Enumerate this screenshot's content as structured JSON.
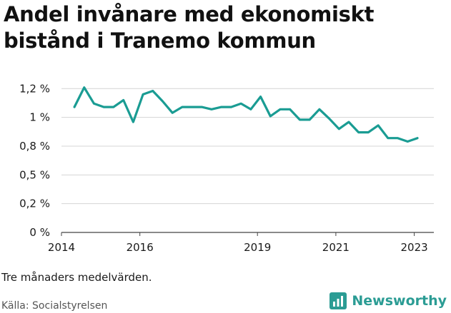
{
  "note": "Tre månaders medelvärden.",
  "source": "Källa: Socialstyrelsen",
  "brand": {
    "name": "Newsworthy",
    "logo_icon": "bar-chart-icon",
    "color": "#2b9c94"
  },
  "chart_data": {
    "type": "line",
    "title": "Andel invånare med ekonomiskt bistånd i Tranemo kommun",
    "xlabel": "",
    "ylabel": "",
    "ylim": [
      0,
      1.32
    ],
    "xlim": [
      2014,
      2023.5
    ],
    "y_ticks": [
      0,
      0.25,
      0.5,
      0.75,
      1.0,
      1.25
    ],
    "y_tick_labels": [
      "0 %",
      "0,2 %",
      "0,5 %",
      "0,8 %",
      "1 %",
      "1,2 %"
    ],
    "x_ticks": [
      2014,
      2016,
      2019,
      2021,
      2023
    ],
    "x_tick_labels": [
      "2014",
      "2016",
      "2019",
      "2021",
      "2023"
    ],
    "grid": true,
    "series_color": "#1a9c93",
    "series": [
      {
        "x": [
          2014.33,
          2014.58,
          2014.83,
          2015.08,
          2015.33,
          2015.58,
          2015.83,
          2016.08,
          2016.33,
          2016.58,
          2016.83,
          2017.08,
          2017.33,
          2017.58,
          2017.83,
          2018.08,
          2018.33,
          2018.58,
          2018.83,
          2019.08,
          2019.33,
          2019.58,
          2019.83,
          2020.08,
          2020.33,
          2020.58,
          2020.83,
          2021.08,
          2021.33,
          2021.58,
          2021.83,
          2022.08,
          2022.33,
          2022.58,
          2022.83,
          2023.08
        ],
        "values": [
          1.09,
          1.26,
          1.12,
          1.09,
          1.09,
          1.15,
          0.96,
          1.2,
          1.23,
          1.14,
          1.04,
          1.09,
          1.09,
          1.09,
          1.07,
          1.09,
          1.09,
          1.12,
          1.07,
          1.18,
          1.01,
          1.07,
          1.07,
          0.98,
          0.98,
          1.07,
          0.99,
          0.9,
          0.96,
          0.87,
          0.87,
          0.93,
          0.82,
          0.82,
          0.79,
          0.82
        ]
      }
    ]
  }
}
